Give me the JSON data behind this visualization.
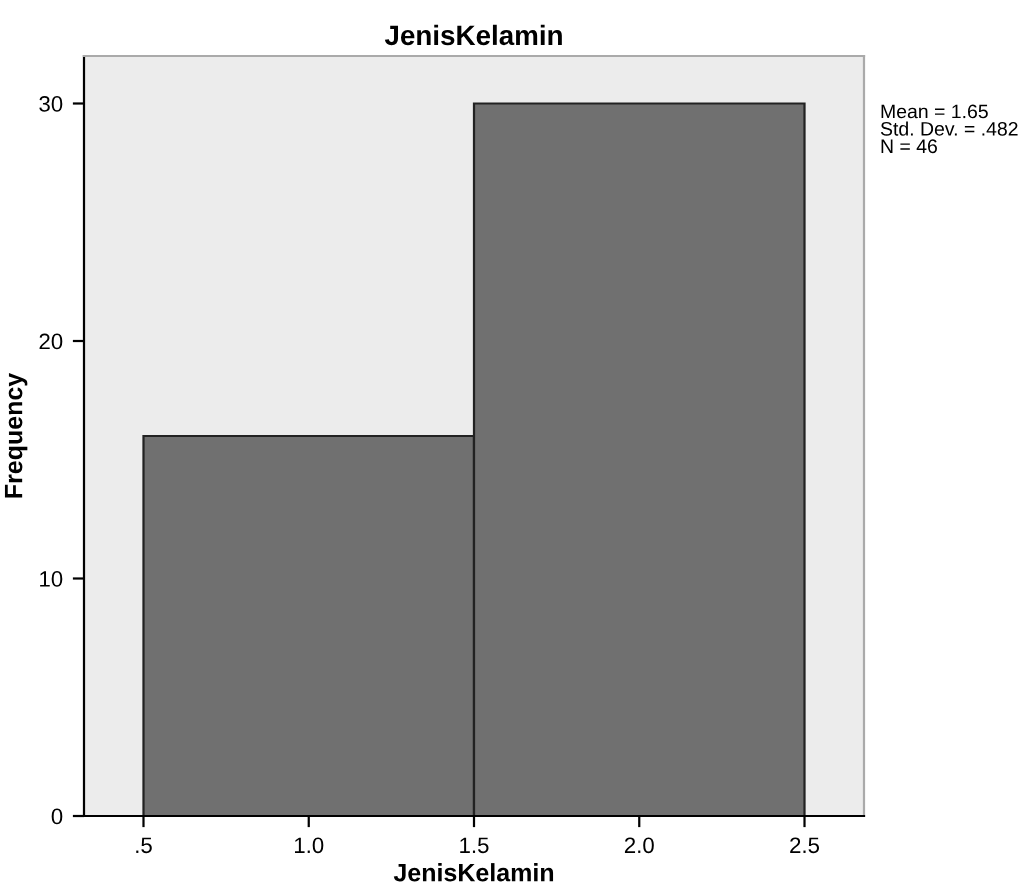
{
  "chart_data": {
    "type": "histogram",
    "title": "JenisKelamin",
    "xlabel": "JenisKelamin",
    "ylabel": "Frequency",
    "bins": [
      0.5,
      1.5,
      2.5
    ],
    "values": [
      16,
      30
    ],
    "color": "#707070",
    "xlim": [
      0.32,
      2.68
    ],
    "ylim": [
      0,
      32
    ],
    "xticks": [
      {
        "value": 0.5,
        "label": ".5"
      },
      {
        "value": 1.0,
        "label": "1.0"
      },
      {
        "value": 1.5,
        "label": "1.5"
      },
      {
        "value": 2.0,
        "label": "2.0"
      },
      {
        "value": 2.5,
        "label": "2.5"
      }
    ],
    "yticks": [
      0,
      10,
      20,
      30
    ],
    "annotations": [
      "Mean = 1.65",
      "Std. Dev. = .482",
      "N = 46"
    ],
    "grid": false
  }
}
